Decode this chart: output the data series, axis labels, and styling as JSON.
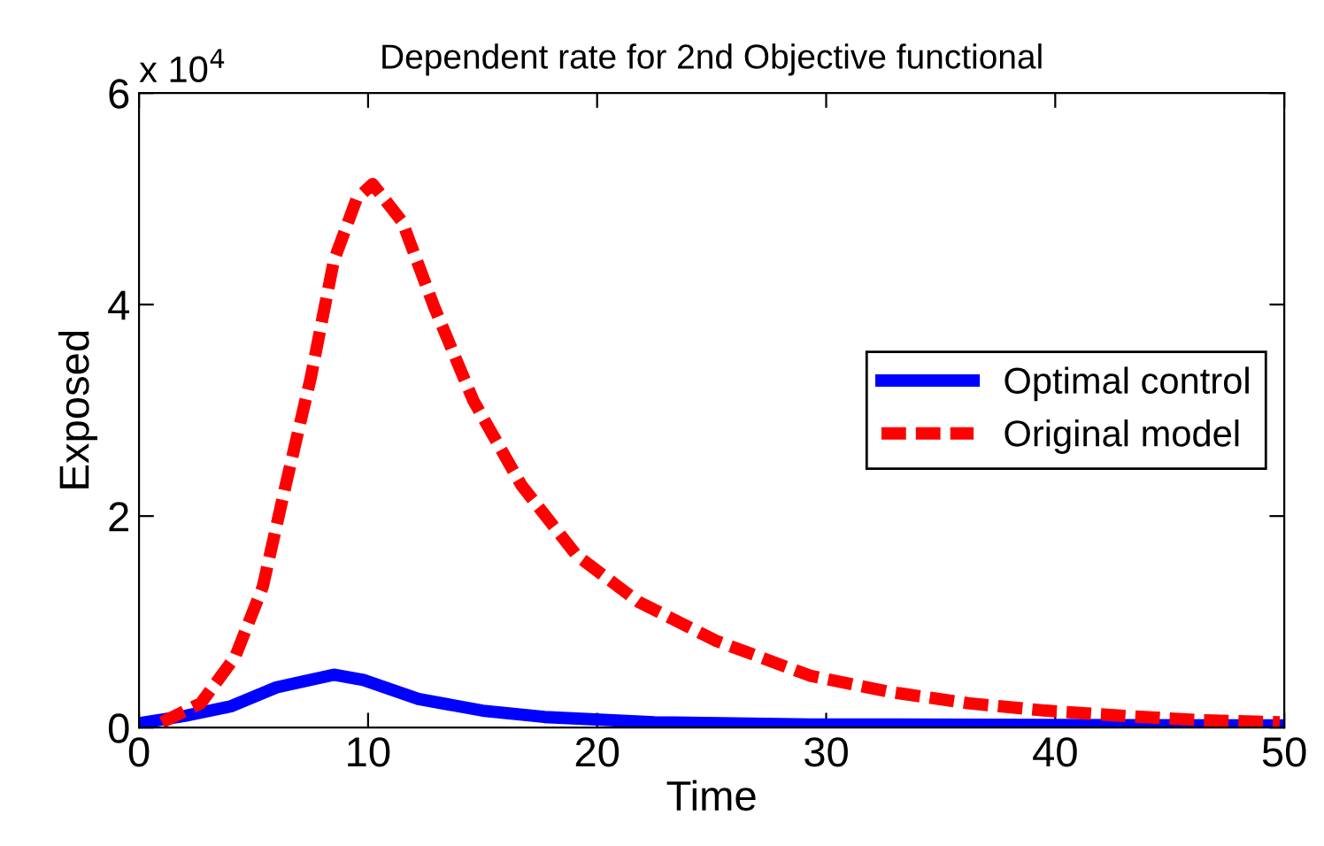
{
  "chart_data": {
    "type": "line",
    "title": "Dependent rate for 2nd Objective functional",
    "xlabel": "Time",
    "ylabel": "Exposed",
    "annotations": [
      "x 10$^{4}$"
    ],
    "xlim": [
      0,
      50
    ],
    "xticks": [
      0,
      10,
      20,
      30,
      40,
      50
    ],
    "ylim": [
      0,
      6
    ],
    "yticks": [
      0,
      2,
      4,
      6
    ],
    "grid": false,
    "legend": "right",
    "series": [
      {
        "name": "Optimal control",
        "color": "#0000ff",
        "line_style": "solid",
        "x": [
          0,
          2,
          4,
          6,
          8.5,
          9.8,
          12.2,
          15,
          17.7,
          22.5,
          29.3,
          50
        ],
        "values": [
          0.04,
          0.11,
          0.2,
          0.38,
          0.5,
          0.45,
          0.27,
          0.16,
          0.1,
          0.05,
          0.03,
          0.02
        ]
      },
      {
        "name": "Original model",
        "color": "#ff0000",
        "line_style": "dashed",
        "x": [
          1,
          2.7,
          4.2,
          5.4,
          6.4,
          7.5,
          8.5,
          9.5,
          10.2,
          11.5,
          12.9,
          14.6,
          16.7,
          19.1,
          21.8,
          25.2,
          29.3,
          32.7,
          36.2,
          39.6,
          43,
          46.4,
          49.8
        ],
        "values": [
          0.05,
          0.23,
          0.67,
          1.33,
          2.29,
          3.31,
          4.41,
          5.0,
          5.14,
          4.78,
          3.97,
          3.09,
          2.29,
          1.63,
          1.19,
          0.82,
          0.49,
          0.34,
          0.23,
          0.16,
          0.11,
          0.07,
          0.05
        ]
      }
    ]
  }
}
